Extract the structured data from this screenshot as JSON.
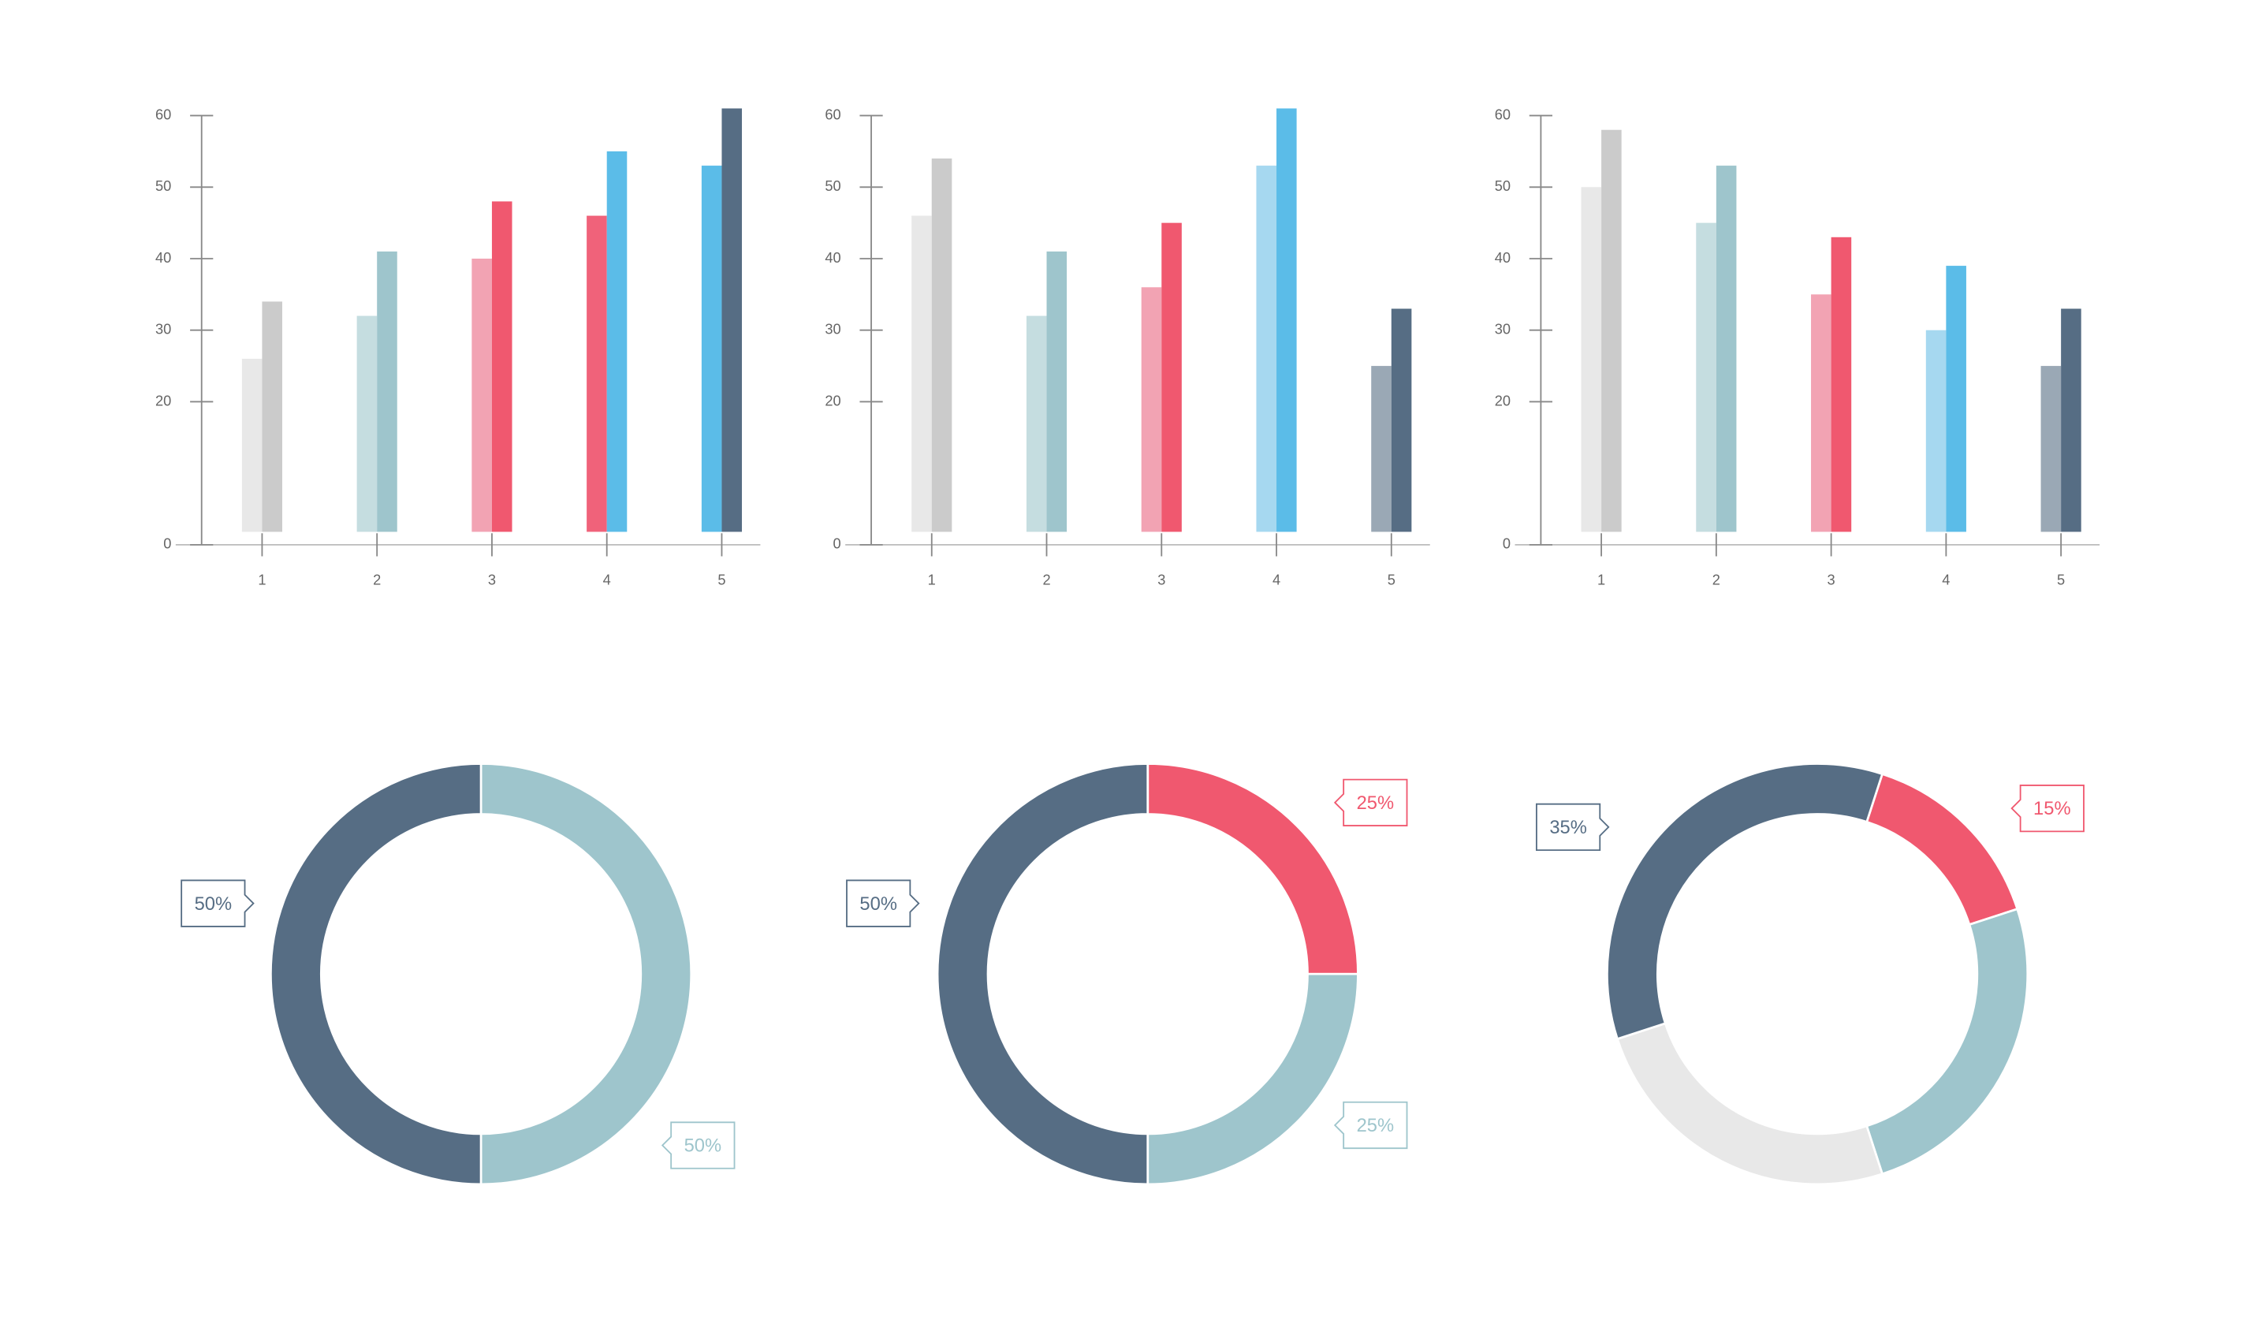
{
  "chart_data": [
    {
      "type": "bar",
      "categories": [
        "1",
        "2",
        "3",
        "4",
        "5"
      ],
      "ylim": [
        0,
        60
      ],
      "yticks": [
        0,
        20,
        30,
        40,
        50,
        60
      ],
      "series": [
        {
          "colors": [
            "#e8e8e8",
            "#c5dde0",
            "#f2a3b3",
            "#f0627a",
            "#5bbce8"
          ],
          "values": [
            26,
            32,
            40,
            46,
            53
          ]
        },
        {
          "colors": [
            "#cbcbcb",
            "#9ec5cc",
            "#f0586f",
            "#5bbce8",
            "#566d84"
          ],
          "values": [
            34,
            41,
            48,
            55,
            61
          ]
        }
      ]
    },
    {
      "type": "bar",
      "categories": [
        "1",
        "2",
        "3",
        "4",
        "5"
      ],
      "ylim": [
        0,
        60
      ],
      "yticks": [
        0,
        20,
        30,
        40,
        50,
        60
      ],
      "series": [
        {
          "colors": [
            "#e8e8e8",
            "#c5dde0",
            "#f2a3b3",
            "#a6d8f0",
            "#9aa8b5"
          ],
          "values": [
            46,
            32,
            36,
            53,
            25
          ]
        },
        {
          "colors": [
            "#cbcbcb",
            "#9ec5cc",
            "#f0586f",
            "#5bbce8",
            "#566d84"
          ],
          "values": [
            54,
            41,
            45,
            61,
            33
          ]
        }
      ]
    },
    {
      "type": "bar",
      "categories": [
        "1",
        "2",
        "3",
        "4",
        "5"
      ],
      "ylim": [
        0,
        60
      ],
      "yticks": [
        0,
        20,
        30,
        40,
        50,
        60
      ],
      "series": [
        {
          "colors": [
            "#e8e8e8",
            "#c5dde0",
            "#f2a3b3",
            "#a6d8f0",
            "#9aa8b5"
          ],
          "values": [
            50,
            45,
            35,
            30,
            25
          ]
        },
        {
          "colors": [
            "#cbcbcb",
            "#9ec5cc",
            "#f0586f",
            "#5bbce8",
            "#566d84"
          ],
          "values": [
            58,
            53,
            43,
            39,
            33
          ]
        }
      ]
    },
    {
      "type": "pie",
      "donut": true,
      "values": [
        50,
        50
      ],
      "value_labels": [
        "50%",
        "50%"
      ],
      "colors": [
        "#9ec5cc",
        "#566d84"
      ]
    },
    {
      "type": "pie",
      "donut": true,
      "values": [
        25,
        25,
        50
      ],
      "value_labels": [
        "25%",
        "25%",
        "50%"
      ],
      "colors": [
        "#f0586f",
        "#9ec5cc",
        "#566d84"
      ]
    },
    {
      "type": "pie",
      "donut": true,
      "values": [
        15,
        25,
        25,
        35
      ],
      "value_labels": [
        "15%",
        null,
        null,
        "35%"
      ],
      "colors": [
        "#f0586f",
        "#9ec5cc",
        "#e8e8e8",
        "#566d84"
      ]
    }
  ]
}
